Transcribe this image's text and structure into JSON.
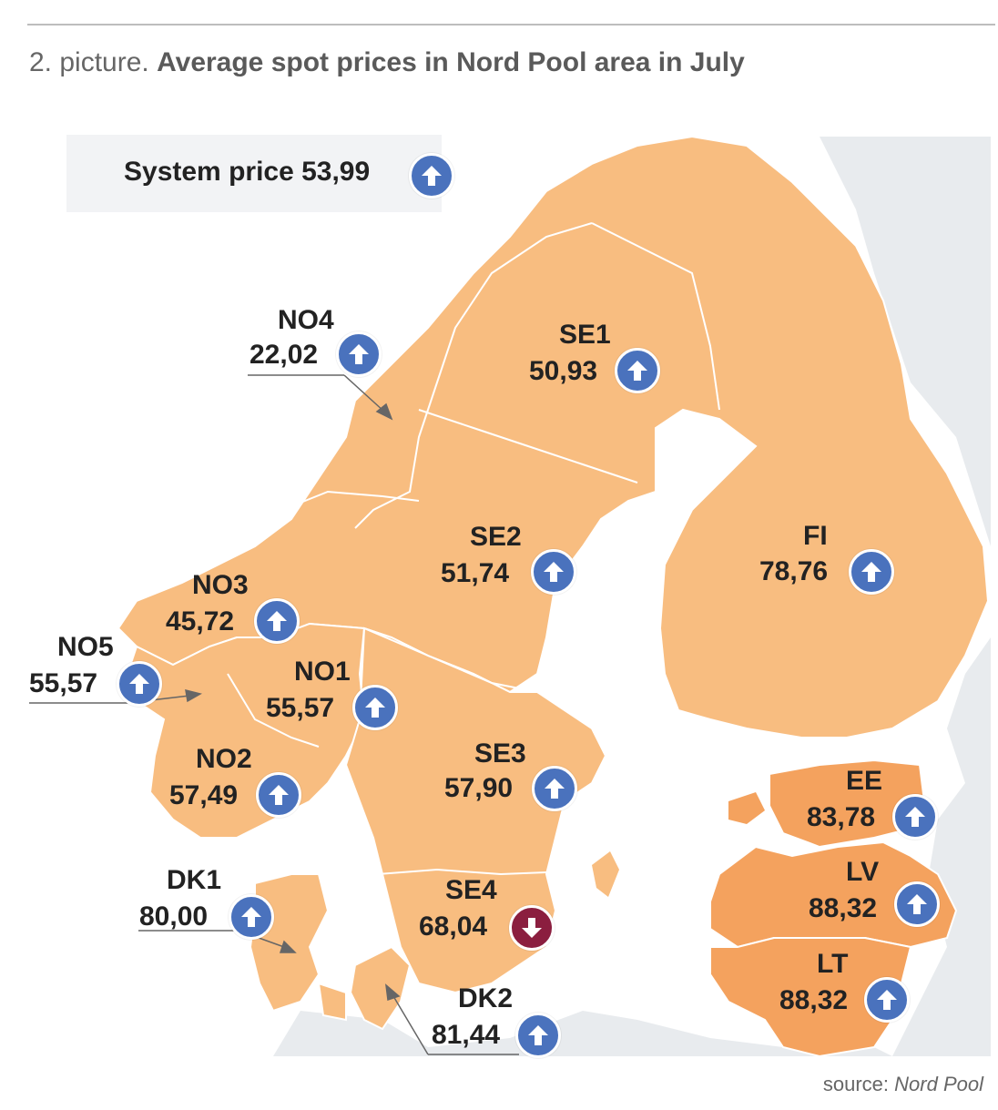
{
  "caption": {
    "lead": "2. picture.",
    "title": "Average spot prices in Nord Pool area in July"
  },
  "system": {
    "label": "System price 53,99",
    "direction": "up"
  },
  "colors": {
    "up": "#4a72bd",
    "down": "#8b1e3f",
    "land": "#f8bd80",
    "baltic": "#f4a25e",
    "sea": "#ffffff",
    "neighbour": "#e8ebee",
    "border": "#ffffff"
  },
  "zones": {
    "NO4": {
      "name": "NO4",
      "price": "22,02",
      "direction": "up"
    },
    "SE1": {
      "name": "SE1",
      "price": "50,93",
      "direction": "up"
    },
    "SE2": {
      "name": "SE2",
      "price": "51,74",
      "direction": "up"
    },
    "FI": {
      "name": "FI",
      "price": "78,76",
      "direction": "up"
    },
    "NO3": {
      "name": "NO3",
      "price": "45,72",
      "direction": "up"
    },
    "NO5": {
      "name": "NO5",
      "price": "55,57",
      "direction": "up"
    },
    "NO1": {
      "name": "NO1",
      "price": "55,57",
      "direction": "up"
    },
    "NO2": {
      "name": "NO2",
      "price": "57,49",
      "direction": "up"
    },
    "SE3": {
      "name": "SE3",
      "price": "57,90",
      "direction": "up"
    },
    "EE": {
      "name": "EE",
      "price": "83,78",
      "direction": "up"
    },
    "LV": {
      "name": "LV",
      "price": "88,32",
      "direction": "up"
    },
    "LT": {
      "name": "LT",
      "price": "88,32",
      "direction": "up"
    },
    "DK1": {
      "name": "DK1",
      "price": "80,00",
      "direction": "up"
    },
    "SE4": {
      "name": "SE4",
      "price": "68,04",
      "direction": "down"
    },
    "DK2": {
      "name": "DK2",
      "price": "81,44",
      "direction": "up"
    }
  },
  "source": {
    "prefix": "source:",
    "name": "Nord Pool"
  }
}
